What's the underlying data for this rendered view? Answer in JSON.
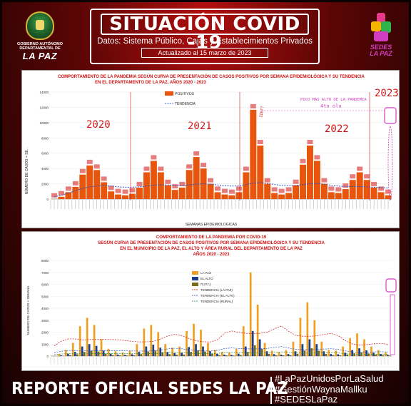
{
  "header": {
    "title": "SITUACIÓN COVID -19",
    "subtitle": "Datos: Sistema Público, Cajas y Establecimientos Privados",
    "updated": "Actualizado al  15 marzo de  2023",
    "gov_text_1": "GOBIERNO AUTÓNOMO",
    "gov_text_2": "DEPARTAMENTAL DE",
    "gov_text_3": "LA PAZ",
    "sedes_text_1": "SEDES",
    "sedes_text_2": "LA PAZ"
  },
  "colors": {
    "positive_bar": "#e8550c",
    "trend_line": "#2a55c0",
    "la_paz": "#f0a020",
    "el_alto": "#1a3f8a",
    "rural": "#7a6a1a",
    "annot_red": "#d21010",
    "annot_pink": "#d23cc0"
  },
  "footer": {
    "title": "REPORTE OFICIAL SEDES LA PAZ",
    "hashtags": [
      "#LaPazUnidosPorLaSalud",
      "#GestiónWaynaMallku",
      "#SEDESLaPaz"
    ]
  },
  "chart_data": [
    {
      "type": "bar",
      "title": "COMPORTAMIENTO DE LA PANDEMIA SEGÚN CURVA DE PRESENTACIÓN DE CASOS POSITIVOS POR SEMANA EPIDEMIOLÓGICA Y SU TENDENCIA",
      "subtitle": "EN EL DEPARTAMENTO DE LA PAZ, AÑOS 2020 - 2023",
      "xlabel": "SEMANAS EPIDEMIOLOGICAS",
      "ylabel": "NÚMERO DE CASOS × SE...",
      "ylim": [
        0,
        14000
      ],
      "yticks": [
        "0",
        "2000",
        "4000",
        "6000",
        "8000",
        "10000",
        "12000",
        "14000"
      ],
      "legend": [
        "POSITIVOS",
        "TENDENCIA"
      ],
      "legend_position": "top-left",
      "year_labels": [
        "2020",
        "2021",
        "2022",
        "2023"
      ],
      "annotations": {
        "peak_value": "11677",
        "peak_note": "PICO MAS ALTO DE LA PANDEMIA",
        "wave_note": "4ta ola"
      },
      "weekly_series_note": "values estimated at 4-week resolution from image",
      "series": [
        {
          "name": "POSITIVOS",
          "values": [
            30,
            300,
            900,
            1600,
            3200,
            4400,
            3800,
            2200,
            1000,
            600,
            500,
            700,
            1500,
            3500,
            5000,
            3500,
            1800,
            1200,
            1500,
            3800,
            5500,
            4000,
            2000,
            900,
            600,
            500,
            900,
            3500,
            11677,
            7000,
            2000,
            800,
            600,
            800,
            1800,
            4500,
            7000,
            5000,
            2000,
            900,
            800,
            1300,
            2500,
            3500,
            2500,
            1500,
            900,
            500
          ]
        }
      ],
      "trend": [
        300,
        500,
        800,
        1100,
        1400,
        1600,
        1700,
        1750,
        1700,
        1600,
        1550,
        1550,
        1600,
        1700,
        1800,
        1850,
        1850,
        1800,
        1800,
        1850,
        1950,
        2000,
        1950,
        1850,
        1750,
        1700,
        1750,
        1900,
        2100,
        2150,
        2050,
        1900,
        1800,
        1750,
        1800,
        1900,
        2000,
        2050,
        1950,
        1800,
        1700,
        1650,
        1650,
        1650,
        1600,
        1550,
        1500,
        1450
      ]
    },
    {
      "type": "bar",
      "title": "COMPORTAMIENTO DE LA PANDEMIA POR COVID-19",
      "subtitle_lines": [
        "SEGÚN CURVA DE PRESENTACIÓN DE CASOS POSITIVOS POR SEMANA EPIDEMIOLÓGICA Y SU TENDENCIA",
        "EN  EL  MUNICIPIO DE LA PAZ, EL ALTO Y ÁREA RURAL DEL DEPARTAMENTO DE LA PAZ",
        "AÑOS 2020 - 2023"
      ],
      "ylabel": "NÚMERO DE CASOS × SEMANA",
      "ylim": [
        0,
        8000
      ],
      "yticks": [
        "0",
        "1000",
        "2000",
        "3000",
        "4000",
        "5000",
        "6000",
        "7000",
        "8000"
      ],
      "legend": [
        "LA PAZ",
        "EL ALTO",
        "RURAL",
        "TENDENCIA (LA PAZ)",
        "TENDENCIA (EL ALTO)",
        "TENDENCIA (RURAL)"
      ],
      "legend_position": "top-center",
      "series": [
        {
          "name": "LA PAZ",
          "values": [
            20,
            150,
            500,
            1100,
            2500,
            3200,
            2600,
            1400,
            600,
            400,
            300,
            450,
            1000,
            2300,
            2600,
            2000,
            1000,
            700,
            800,
            2100,
            2700,
            2200,
            1100,
            500,
            350,
            300,
            600,
            2500,
            7000,
            4300,
            1100,
            450,
            350,
            500,
            1200,
            3200,
            4500,
            3000,
            1200,
            500,
            450,
            800,
            1500,
            1900,
            1400,
            800,
            500,
            300
          ]
        },
        {
          "name": "EL ALTO",
          "values": [
            5,
            60,
            200,
            350,
            800,
            1000,
            850,
            450,
            200,
            130,
            100,
            150,
            350,
            800,
            950,
            700,
            350,
            250,
            280,
            750,
            1000,
            800,
            400,
            180,
            120,
            100,
            200,
            800,
            2100,
            1400,
            400,
            160,
            120,
            170,
            400,
            1000,
            1400,
            1000,
            400,
            170,
            150,
            280,
            500,
            650,
            480,
            280,
            170,
            100
          ]
        },
        {
          "name": "RURAL",
          "values": [
            2,
            20,
            80,
            150,
            350,
            450,
            380,
            200,
            90,
            60,
            50,
            70,
            160,
            380,
            450,
            330,
            160,
            110,
            130,
            350,
            470,
            380,
            190,
            80,
            55,
            45,
            90,
            350,
            900,
            600,
            180,
            70,
            55,
            80,
            190,
            460,
            650,
            450,
            180,
            80,
            70,
            130,
            230,
            300,
            220,
            130,
            80,
            45
          ]
        }
      ]
    }
  ]
}
